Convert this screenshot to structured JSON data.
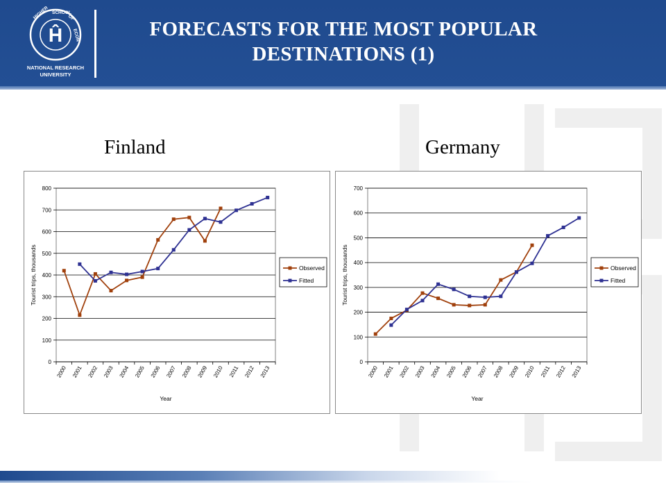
{
  "header": {
    "title_line1": "FORECASTS FOR THE MOST POPULAR",
    "title_line2": "DESTINATIONS (1)",
    "logo_text": "NATIONAL RESEARCH UNIVERSITY",
    "logo_ring_text": "HIGHER SCHOOL OF ECONOMICS",
    "bg_color": "#234f94"
  },
  "chart_data": [
    {
      "type": "line",
      "subtitle": "Finland",
      "xlabel": "Year",
      "ylabel": "Tourist trips, thousands",
      "categories": [
        "2000",
        "2001",
        "2002",
        "2003",
        "2004",
        "2005",
        "2006",
        "2007",
        "2008",
        "2009",
        "2010",
        "2011",
        "2012",
        "2013"
      ],
      "ylim": [
        0,
        800
      ],
      "yticks": [
        0,
        100,
        200,
        300,
        400,
        500,
        600,
        700,
        800
      ],
      "grid": true,
      "legend_position": "right",
      "series": [
        {
          "name": "Observed",
          "color": "#a0400c",
          "values": [
            420,
            215,
            405,
            328,
            375,
            390,
            562,
            657,
            665,
            557,
            707,
            null,
            null,
            null
          ]
        },
        {
          "name": "Fitted",
          "color": "#2e3192",
          "values": [
            null,
            450,
            373,
            412,
            403,
            416,
            430,
            516,
            608,
            660,
            644,
            698,
            728,
            757
          ]
        }
      ]
    },
    {
      "type": "line",
      "subtitle": "Germany",
      "xlabel": "Year",
      "ylabel": "Tourist trips, thousands",
      "categories": [
        "2000",
        "2001",
        "2002",
        "2003",
        "2004",
        "2005",
        "2006",
        "2007",
        "2008",
        "2009",
        "2010",
        "2011",
        "2012",
        "2013"
      ],
      "ylim": [
        0,
        700
      ],
      "yticks": [
        0,
        100,
        200,
        300,
        400,
        500,
        600,
        700
      ],
      "grid": true,
      "legend_position": "right",
      "series": [
        {
          "name": "Observed",
          "color": "#a0400c",
          "values": [
            112,
            175,
            208,
            277,
            256,
            230,
            227,
            230,
            330,
            362,
            470,
            null,
            null,
            null
          ]
        },
        {
          "name": "Fitted",
          "color": "#2e3192",
          "values": [
            null,
            148,
            211,
            247,
            313,
            292,
            264,
            260,
            264,
            362,
            397,
            508,
            542,
            580
          ]
        }
      ]
    }
  ]
}
